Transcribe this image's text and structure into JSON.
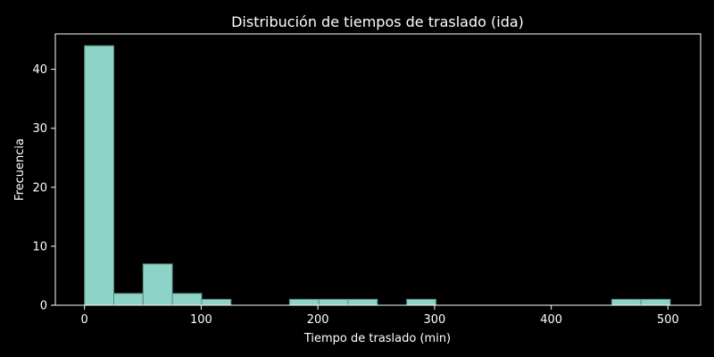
{
  "chart_data": {
    "type": "bar",
    "title": "Distribución de tiempos de traslado (ida)",
    "xlabel": "Tiempo de traslado (min)",
    "ylabel": "Frecuencia",
    "xlim": [
      -25,
      528
    ],
    "ylim": [
      0,
      46
    ],
    "x_ticks": [
      0,
      100,
      200,
      300,
      400,
      500
    ],
    "y_ticks": [
      0,
      10,
      20,
      30,
      40
    ],
    "bin_width": 25.1,
    "bins": [
      {
        "start": 0.0,
        "end": 25.1,
        "count": 44
      },
      {
        "start": 25.1,
        "end": 50.2,
        "count": 2
      },
      {
        "start": 50.2,
        "end": 75.3,
        "count": 7
      },
      {
        "start": 75.3,
        "end": 100.4,
        "count": 2
      },
      {
        "start": 100.4,
        "end": 125.5,
        "count": 1
      },
      {
        "start": 125.5,
        "end": 150.6,
        "count": 0
      },
      {
        "start": 150.6,
        "end": 175.7,
        "count": 0
      },
      {
        "start": 175.7,
        "end": 200.8,
        "count": 1
      },
      {
        "start": 200.8,
        "end": 225.9,
        "count": 1
      },
      {
        "start": 225.9,
        "end": 251.0,
        "count": 1
      },
      {
        "start": 251.0,
        "end": 276.1,
        "count": 0
      },
      {
        "start": 276.1,
        "end": 301.2,
        "count": 1
      },
      {
        "start": 301.2,
        "end": 326.3,
        "count": 0
      },
      {
        "start": 326.3,
        "end": 351.4,
        "count": 0
      },
      {
        "start": 351.4,
        "end": 376.5,
        "count": 0
      },
      {
        "start": 376.5,
        "end": 401.6,
        "count": 0
      },
      {
        "start": 401.6,
        "end": 426.7,
        "count": 0
      },
      {
        "start": 426.7,
        "end": 451.8,
        "count": 0
      },
      {
        "start": 451.8,
        "end": 476.9,
        "count": 1
      },
      {
        "start": 476.9,
        "end": 502.0,
        "count": 1
      }
    ],
    "grid": false,
    "legend": "none",
    "colors": {
      "background": "#000000",
      "bar_fill": "#8dd3c7",
      "bar_edge": "#5a8a82",
      "axes": "#ffffff",
      "text": "#ffffff"
    }
  }
}
